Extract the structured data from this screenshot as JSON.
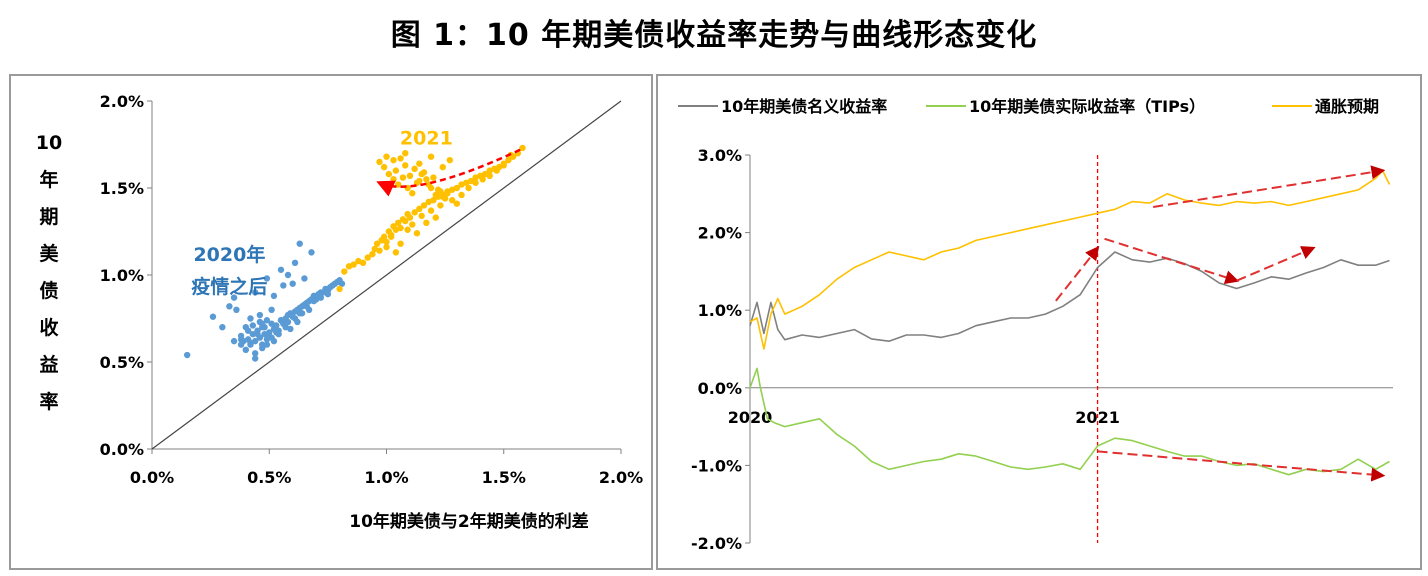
{
  "figure_title": "图 1：10 年期美债收益率走势与曲线形态变化",
  "chart_data": [
    {
      "type": "scatter",
      "xlabel": "10年期美债与2年期美债的利差",
      "ylabel": "10年期美债收益率",
      "ylabel_chars": [
        "10",
        "年",
        "期",
        "美",
        "债",
        "收",
        "益",
        "率"
      ],
      "xlim": [
        0,
        2
      ],
      "ylim": [
        0,
        2
      ],
      "x_ticks": [
        0,
        0.5,
        1.0,
        1.5,
        2.0
      ],
      "y_ticks": [
        0,
        0.5,
        1.0,
        1.5,
        2.0
      ],
      "x_tick_labels": [
        "0.0%",
        "0.5%",
        "1.0%",
        "1.5%",
        "2.0%"
      ],
      "y_tick_labels": [
        "0.0%",
        "0.5%",
        "1.0%",
        "1.5%",
        "2.0%"
      ],
      "reference_line": {
        "x": [
          0,
          2
        ],
        "y": [
          0,
          2
        ],
        "color": "#444444"
      },
      "annotations": [
        {
          "text_lines": [
            "2020年",
            "疫情之后"
          ],
          "color": "#2e75b6",
          "anchor_x": 0.33,
          "anchor_y": 1.08
        },
        {
          "text_lines": [
            "2021"
          ],
          "color": "#ffc000",
          "anchor_x": 1.17,
          "anchor_y": 1.75
        }
      ],
      "trend_arrow": {
        "color": "#ff0000",
        "x": [
          1.57,
          1.38,
          1.1,
          0.97
        ],
        "y": [
          1.72,
          1.6,
          1.45,
          1.53
        ]
      },
      "series": [
        {
          "name": "2020年 疫情之后",
          "color": "#5b9bd5",
          "x": [
            0.15,
            0.26,
            0.3,
            0.33,
            0.35,
            0.36,
            0.38,
            0.38,
            0.39,
            0.4,
            0.4,
            0.41,
            0.42,
            0.42,
            0.43,
            0.44,
            0.44,
            0.45,
            0.46,
            0.46,
            0.47,
            0.47,
            0.48,
            0.49,
            0.49,
            0.5,
            0.51,
            0.51,
            0.52,
            0.53,
            0.54,
            0.55,
            0.56,
            0.57,
            0.58,
            0.59,
            0.6,
            0.61,
            0.62,
            0.63,
            0.64,
            0.65,
            0.66,
            0.67,
            0.68,
            0.69,
            0.7,
            0.71,
            0.72,
            0.73,
            0.74,
            0.75,
            0.76,
            0.77,
            0.78,
            0.79,
            0.8,
            0.81,
            0.43,
            0.45,
            0.48,
            0.5,
            0.53,
            0.55,
            0.58,
            0.61,
            0.63,
            0.66,
            0.69,
            0.38,
            0.42,
            0.47,
            0.52,
            0.57,
            0.62,
            0.67,
            0.72,
            0.44,
            0.49,
            0.54,
            0.59,
            0.64,
            0.7,
            0.75,
            0.35,
            0.41,
            0.46,
            0.51,
            0.56,
            0.6,
            0.65,
            0.58,
            0.61,
            0.55,
            0.49,
            0.44,
            0.52,
            0.47,
            0.63,
            0.68
          ],
          "y": [
            0.54,
            0.76,
            0.7,
            0.82,
            0.87,
            0.8,
            0.6,
            0.65,
            0.62,
            0.7,
            0.57,
            0.63,
            0.6,
            0.75,
            0.66,
            0.62,
            0.52,
            0.68,
            0.64,
            0.73,
            0.6,
            0.7,
            0.66,
            0.63,
            0.74,
            0.67,
            0.64,
            0.72,
            0.69,
            0.71,
            0.68,
            0.74,
            0.72,
            0.75,
            0.73,
            0.78,
            0.76,
            0.79,
            0.8,
            0.78,
            0.82,
            0.83,
            0.82,
            0.85,
            0.86,
            0.88,
            0.87,
            0.89,
            0.9,
            0.9,
            0.92,
            0.91,
            0.93,
            0.94,
            0.95,
            0.96,
            0.97,
            0.95,
            0.71,
            0.66,
            0.7,
            0.65,
            0.67,
            0.74,
            0.77,
            0.75,
            0.81,
            0.84,
            0.85,
            0.63,
            0.61,
            0.58,
            0.62,
            0.7,
            0.73,
            0.8,
            0.87,
            0.55,
            0.6,
            0.66,
            0.69,
            0.78,
            0.86,
            0.89,
            0.62,
            0.68,
            0.77,
            0.8,
            0.94,
            0.95,
            0.98,
            1.0,
            1.07,
            1.03,
            0.98,
            0.9,
            0.88,
            0.72,
            1.18,
            1.13
          ]
        },
        {
          "name": "2021",
          "color": "#ffc000",
          "x": [
            0.8,
            0.82,
            0.84,
            0.86,
            0.88,
            0.9,
            0.92,
            0.94,
            0.95,
            0.96,
            0.97,
            0.98,
            0.99,
            1.0,
            1.01,
            1.02,
            1.03,
            1.04,
            1.05,
            1.06,
            1.07,
            1.08,
            1.09,
            1.1,
            1.12,
            1.14,
            1.16,
            1.18,
            1.2,
            1.22,
            1.24,
            1.26,
            1.28,
            1.3,
            1.32,
            1.34,
            1.36,
            1.38,
            1.4,
            1.42,
            1.44,
            1.46,
            1.48,
            1.5,
            1.52,
            1.54,
            1.56,
            1.58,
            0.97,
            0.99,
            1.01,
            1.03,
            1.05,
            1.07,
            1.09,
            1.11,
            1.13,
            1.15,
            1.17,
            1.19,
            1.21,
            1.23,
            1.25,
            1.04,
            1.06,
            1.08,
            1.1,
            1.12,
            1.14,
            1.16,
            1.18,
            1.2,
            1.22,
            1.24,
            1.26,
            1.28,
            1.3,
            1.32,
            1.35,
            1.38,
            1.41,
            1.44,
            1.47,
            1.5,
            1.53,
            0.98,
            1.0,
            1.02,
            1.04,
            1.06,
            1.09,
            1.11,
            1.13,
            1.15,
            1.17,
            1.19,
            1.21,
            1.23,
            1.0,
            1.03,
            1.08,
            1.14,
            1.19,
            1.24,
            1.27
          ],
          "y": [
            0.92,
            1.02,
            1.05,
            1.06,
            1.08,
            1.07,
            1.1,
            1.12,
            1.15,
            1.18,
            1.14,
            1.2,
            1.22,
            1.19,
            1.25,
            1.23,
            1.28,
            1.26,
            1.3,
            1.27,
            1.32,
            1.31,
            1.35,
            1.33,
            1.36,
            1.38,
            1.4,
            1.42,
            1.43,
            1.45,
            1.46,
            1.48,
            1.49,
            1.5,
            1.52,
            1.53,
            1.54,
            1.56,
            1.57,
            1.58,
            1.6,
            1.61,
            1.62,
            1.64,
            1.66,
            1.68,
            1.7,
            1.73,
            1.65,
            1.62,
            1.58,
            1.55,
            1.52,
            1.56,
            1.5,
            1.47,
            1.53,
            1.58,
            1.55,
            1.5,
            1.46,
            1.48,
            1.44,
            1.6,
            1.67,
            1.63,
            1.57,
            1.61,
            1.54,
            1.59,
            1.52,
            1.56,
            1.49,
            1.45,
            1.47,
            1.43,
            1.41,
            1.46,
            1.5,
            1.53,
            1.55,
            1.57,
            1.6,
            1.63,
            1.69,
            1.2,
            1.16,
            1.22,
            1.13,
            1.18,
            1.26,
            1.29,
            1.24,
            1.34,
            1.3,
            1.37,
            1.33,
            1.4,
            1.68,
            1.66,
            1.7,
            1.64,
            1.68,
            1.62,
            1.66
          ]
        }
      ]
    },
    {
      "type": "line",
      "legend_position": "top",
      "ylim": [
        -2.0,
        3.0
      ],
      "y_ticks": [
        -2.0,
        -1.0,
        0.0,
        1.0,
        2.0,
        3.0
      ],
      "y_tick_labels": [
        "-2.0%",
        "-1.0%",
        "0.0%",
        "1.0%",
        "2.0%",
        "3.0%"
      ],
      "x_range": [
        0,
        1.85
      ],
      "x_tick_labels": [
        {
          "x": 0,
          "label": "2020"
        },
        {
          "x": 1.0,
          "label": "2021"
        }
      ],
      "vertical_marker": {
        "x": 1.0,
        "color": "#ff0000",
        "style": "dashed"
      },
      "trend_arrows": [
        {
          "x": [
            1.16,
            1.82
          ],
          "y": [
            2.33,
            2.8
          ]
        },
        {
          "x": [
            0.88,
            1.0
          ],
          "y": [
            1.12,
            1.8
          ]
        },
        {
          "x": [
            1.02,
            1.4
          ],
          "y": [
            1.92,
            1.38
          ]
        },
        {
          "x": [
            1.4,
            1.62
          ],
          "y": [
            1.38,
            1.8
          ]
        },
        {
          "x": [
            1.0,
            1.82
          ],
          "y": [
            -0.82,
            -1.13
          ]
        }
      ],
      "series": [
        {
          "name": "10年期美债名义收益率",
          "color": "#808080",
          "x": [
            0,
            0.02,
            0.04,
            0.06,
            0.08,
            0.1,
            0.15,
            0.2,
            0.25,
            0.3,
            0.35,
            0.4,
            0.45,
            0.5,
            0.55,
            0.6,
            0.65,
            0.7,
            0.75,
            0.8,
            0.85,
            0.9,
            0.95,
            1.0,
            1.05,
            1.1,
            1.15,
            1.2,
            1.25,
            1.3,
            1.35,
            1.4,
            1.45,
            1.5,
            1.55,
            1.6,
            1.65,
            1.7,
            1.75,
            1.8,
            1.84
          ],
          "y": [
            0.8,
            1.1,
            0.7,
            1.1,
            0.75,
            0.62,
            0.68,
            0.65,
            0.7,
            0.75,
            0.63,
            0.6,
            0.68,
            0.68,
            0.65,
            0.7,
            0.8,
            0.85,
            0.9,
            0.9,
            0.95,
            1.05,
            1.2,
            1.55,
            1.75,
            1.65,
            1.62,
            1.67,
            1.6,
            1.5,
            1.35,
            1.28,
            1.35,
            1.43,
            1.4,
            1.48,
            1.55,
            1.65,
            1.58,
            1.58,
            1.64
          ]
        },
        {
          "name": "10年期美债实际收益率（TIPs）",
          "color": "#92d050",
          "x": [
            0,
            0.02,
            0.03,
            0.05,
            0.07,
            0.1,
            0.15,
            0.2,
            0.25,
            0.3,
            0.35,
            0.4,
            0.45,
            0.5,
            0.55,
            0.6,
            0.65,
            0.7,
            0.75,
            0.8,
            0.85,
            0.9,
            0.95,
            1.0,
            1.05,
            1.1,
            1.15,
            1.2,
            1.25,
            1.3,
            1.35,
            1.4,
            1.45,
            1.5,
            1.55,
            1.6,
            1.65,
            1.7,
            1.75,
            1.8,
            1.84
          ],
          "y": [
            0.0,
            0.25,
            0.0,
            -0.4,
            -0.45,
            -0.5,
            -0.45,
            -0.4,
            -0.6,
            -0.75,
            -0.95,
            -1.05,
            -1.0,
            -0.95,
            -0.92,
            -0.85,
            -0.88,
            -0.95,
            -1.02,
            -1.05,
            -1.02,
            -0.98,
            -1.05,
            -0.75,
            -0.65,
            -0.68,
            -0.75,
            -0.82,
            -0.88,
            -0.88,
            -0.95,
            -1.0,
            -0.98,
            -1.05,
            -1.12,
            -1.05,
            -1.08,
            -1.05,
            -0.92,
            -1.05,
            -0.95
          ]
        },
        {
          "name": "通胀预期",
          "color": "#ffc000",
          "x": [
            0,
            0.02,
            0.04,
            0.06,
            0.08,
            0.1,
            0.15,
            0.2,
            0.25,
            0.3,
            0.35,
            0.4,
            0.45,
            0.5,
            0.55,
            0.6,
            0.65,
            0.7,
            0.75,
            0.8,
            0.85,
            0.9,
            0.95,
            1.0,
            1.05,
            1.1,
            1.15,
            1.2,
            1.25,
            1.3,
            1.35,
            1.4,
            1.45,
            1.5,
            1.55,
            1.6,
            1.65,
            1.7,
            1.75,
            1.8,
            1.82,
            1.84
          ],
          "y": [
            0.85,
            0.9,
            0.5,
            0.95,
            1.15,
            0.95,
            1.05,
            1.2,
            1.4,
            1.55,
            1.65,
            1.75,
            1.7,
            1.65,
            1.75,
            1.8,
            1.9,
            1.95,
            2.0,
            2.05,
            2.1,
            2.15,
            2.2,
            2.25,
            2.3,
            2.4,
            2.38,
            2.5,
            2.42,
            2.38,
            2.35,
            2.4,
            2.38,
            2.4,
            2.35,
            2.4,
            2.45,
            2.5,
            2.55,
            2.7,
            2.8,
            2.62
          ]
        }
      ]
    }
  ]
}
